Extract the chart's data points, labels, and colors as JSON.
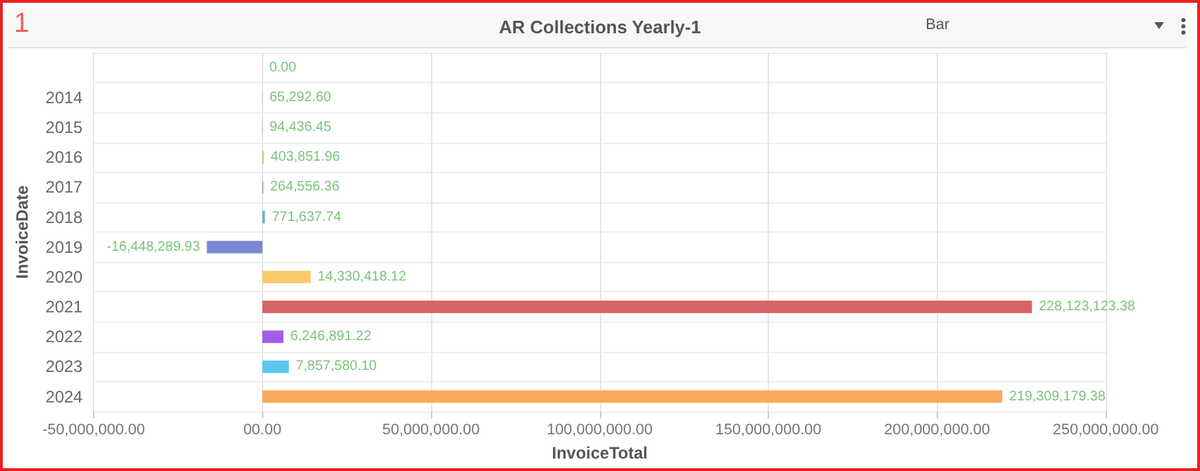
{
  "chart_data": {
    "type": "bar",
    "orientation": "horizontal",
    "title": "AR Collections Yearly-1",
    "xlabel": "InvoiceTotal",
    "ylabel": "InvoiceDate",
    "annotations": [
      "1",
      "Bar"
    ],
    "categories": [
      null,
      "2014",
      "2015",
      "2016",
      "2017",
      "2018",
      "2019",
      "2020",
      "2021",
      "2022",
      "2023",
      "2024"
    ],
    "values": [
      0,
      65292.6,
      94436.45,
      403851.96,
      264556.36,
      771637.74,
      -16448289.93,
      14330418.12,
      228123123.38,
      6246891.22,
      7857580.1,
      219309179.38
    ],
    "value_labels": [
      "0.00",
      "65,292.60",
      "94,436.45",
      "403,851.96",
      "264,556.36",
      "771,637.74",
      "-16,448,289.93",
      "14,330,418.12",
      "228,123,123.38",
      "6,246,891.22",
      "7,857,580.10",
      "219,309,179.38"
    ],
    "colors": [
      "#9e9e9e",
      "#c86fc0",
      "#5bb8a8",
      "#b5cf6b",
      "#6ab46a",
      "#6fb4bf",
      "#7b87d4",
      "#fbc96b",
      "#d96468",
      "#a45ce6",
      "#5bc8f0",
      "#f8a95b"
    ],
    "xlim": [
      -50000000,
      250000000
    ],
    "xticks": [
      {
        "value": -50000000,
        "label": "-50,000,000.00"
      },
      {
        "value": 0,
        "label": "00.00"
      },
      {
        "value": 50000000,
        "label": "50,000,000.00"
      },
      {
        "value": 100000000,
        "label": "100,000,000.00"
      },
      {
        "value": 150000000,
        "label": "150,000,000.00"
      },
      {
        "value": 200000000,
        "label": "200,000,000.00"
      },
      {
        "value": 250000000,
        "label": "250,000,000.00"
      }
    ],
    "grid": true
  }
}
